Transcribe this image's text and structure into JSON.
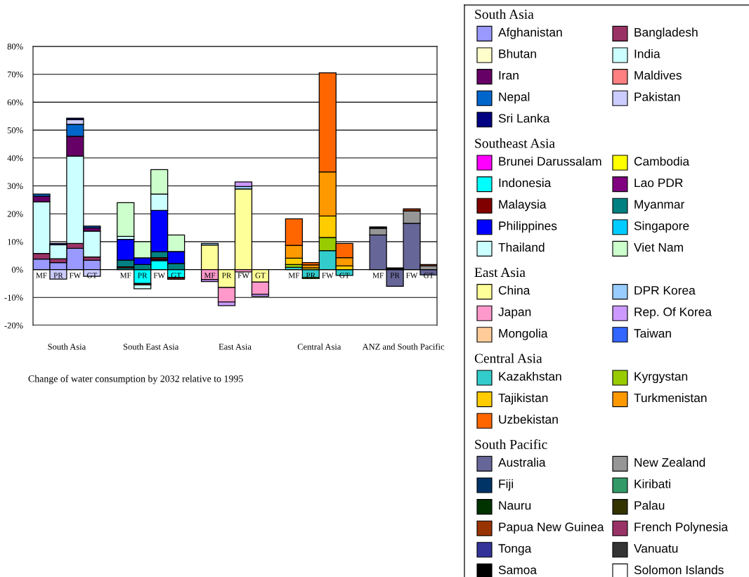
{
  "chart_data": {
    "type": "bar",
    "stacked": true,
    "categories": [
      "MF",
      "PR",
      "FW",
      "GT",
      null,
      "MF",
      "PR",
      "FW",
      "GT",
      null,
      "MF",
      "PR",
      "FW",
      "GT",
      null,
      "MF",
      "PR",
      "FW",
      "GT",
      null,
      "MF",
      "PR",
      "FW",
      "GT"
    ],
    "ylim": [
      -20,
      80
    ],
    "yticks": [
      {
        "value": -20,
        "label": "-20%"
      },
      {
        "value": -10,
        "label": "-10%"
      },
      {
        "value": 0,
        "label": "0%"
      },
      {
        "value": 10,
        "label": "10%"
      },
      {
        "value": 20,
        "label": "20%"
      },
      {
        "value": 30,
        "label": "30%"
      },
      {
        "value": 40,
        "label": "40%"
      },
      {
        "value": 50,
        "label": "50%"
      },
      {
        "value": 60,
        "label": "60%"
      },
      {
        "value": 70,
        "label": "70%"
      },
      {
        "value": 80,
        "label": "80%"
      }
    ],
    "grid": "y",
    "legend": "right",
    "annotations": [
      "South Asia",
      "South East Asia",
      "East Asia",
      "Central Asia",
      "ANZ and South Pacific",
      "Change of water consumption by 2032 relative to 1995",
      "South Asia",
      "Southeast Asia",
      "East Asia",
      "Central Asia",
      "South Pacific"
    ],
    "series": [
      {
        "name": "Afghanistan",
        "color": "#9999ff",
        "values": [
          3.8,
          2.5,
          7.6,
          3.3,
          null,
          null,
          null,
          null,
          null,
          null,
          null,
          null,
          null,
          null,
          null,
          null,
          null,
          null,
          null,
          null,
          null,
          null,
          null,
          null
        ]
      },
      {
        "name": "Bangladesh",
        "color": "#993366",
        "values": [
          2.0,
          1.4,
          1.8,
          1.2,
          null,
          null,
          null,
          null,
          null,
          null,
          null,
          null,
          null,
          null,
          null,
          null,
          null,
          null,
          null,
          null,
          null,
          null,
          null,
          null
        ]
      },
      {
        "name": "Bhutan",
        "color": "#ffffcc",
        "values": [
          0,
          0,
          0,
          0,
          null,
          null,
          null,
          null,
          null,
          null,
          null,
          null,
          null,
          null,
          null,
          null,
          null,
          null,
          null,
          null,
          null,
          null,
          null,
          null
        ]
      },
      {
        "name": "India",
        "color": "#ccffff",
        "values": [
          18.5,
          5.0,
          31.3,
          9.3,
          null,
          null,
          null,
          null,
          null,
          null,
          null,
          null,
          null,
          null,
          null,
          null,
          null,
          null,
          null,
          null,
          null,
          null,
          null,
          null
        ]
      },
      {
        "name": "Iran",
        "color": "#660066",
        "values": [
          2.0,
          0,
          7.1,
          1.2,
          null,
          null,
          null,
          null,
          null,
          null,
          null,
          null,
          null,
          null,
          null,
          null,
          null,
          null,
          null,
          null,
          null,
          null,
          null,
          null
        ]
      },
      {
        "name": "Maldives",
        "color": "#ff8080",
        "values": [
          0,
          0,
          0,
          0,
          null,
          null,
          null,
          null,
          null,
          null,
          null,
          null,
          null,
          null,
          null,
          null,
          null,
          null,
          null,
          null,
          null,
          null,
          null,
          null
        ]
      },
      {
        "name": "Nepal",
        "color": "#0066cc",
        "values": [
          0.8,
          0,
          4.3,
          0.6,
          null,
          null,
          null,
          null,
          null,
          null,
          null,
          null,
          null,
          null,
          null,
          null,
          null,
          null,
          null,
          null,
          null,
          null,
          null,
          null
        ]
      },
      {
        "name": "Pakistan",
        "color": "#ccccff",
        "values": [
          0,
          -3.4,
          1.7,
          -2.4,
          null,
          null,
          null,
          null,
          null,
          null,
          null,
          null,
          null,
          null,
          null,
          null,
          null,
          null,
          null,
          null,
          null,
          null,
          null,
          null
        ]
      },
      {
        "name": "Sri Lanka",
        "color": "#000080",
        "values": [
          0,
          0.5,
          0.5,
          0,
          null,
          null,
          null,
          null,
          null,
          null,
          null,
          null,
          null,
          null,
          null,
          null,
          null,
          null,
          null,
          null,
          null,
          null,
          null,
          null
        ]
      },
      {
        "name": "Brunei Darussalam",
        "color": "#ff00ff",
        "values": [
          null,
          null,
          null,
          null,
          null,
          0,
          0,
          0,
          0,
          null,
          null,
          null,
          null,
          null,
          null,
          null,
          null,
          null,
          null,
          null,
          null,
          null,
          null,
          null
        ]
      },
      {
        "name": "Cambodia",
        "color": "#ffff00",
        "values": [
          null,
          null,
          null,
          null,
          null,
          0,
          0,
          0,
          0,
          null,
          null,
          null,
          null,
          null,
          null,
          null,
          null,
          null,
          null,
          null,
          null,
          null,
          null,
          null
        ]
      },
      {
        "name": "Indonesia",
        "color": "#00ffff",
        "values": [
          null,
          null,
          null,
          null,
          null,
          0.5,
          -5.0,
          3.2,
          -2.8,
          null,
          null,
          null,
          null,
          null,
          null,
          null,
          null,
          null,
          null,
          null,
          null,
          null,
          null,
          null
        ]
      },
      {
        "name": "Lao PDR",
        "color": "#800080",
        "values": [
          null,
          null,
          null,
          null,
          null,
          0,
          0,
          0.4,
          0,
          null,
          null,
          null,
          null,
          null,
          null,
          null,
          null,
          null,
          null,
          null,
          null,
          null,
          null,
          null
        ]
      },
      {
        "name": "Malaysia",
        "color": "#800000",
        "values": [
          null,
          null,
          null,
          null,
          null,
          0.5,
          -0.5,
          0.7,
          -0.7,
          null,
          null,
          null,
          null,
          null,
          null,
          null,
          null,
          null,
          null,
          null,
          null,
          null,
          null,
          null
        ]
      },
      {
        "name": "Myanmar",
        "color": "#008080",
        "values": [
          null,
          null,
          null,
          null,
          null,
          2.4,
          1.8,
          2.1,
          2.2,
          null,
          null,
          null,
          null,
          null,
          null,
          null,
          null,
          null,
          null,
          null,
          null,
          null,
          null,
          null
        ]
      },
      {
        "name": "Philippines",
        "color": "#0000ff",
        "values": [
          null,
          null,
          null,
          null,
          null,
          7.4,
          2.4,
          14.8,
          4.3,
          null,
          null,
          null,
          null,
          null,
          null,
          null,
          null,
          null,
          null,
          null,
          null,
          null,
          null,
          null
        ]
      },
      {
        "name": "Singapore",
        "color": "#00ccff",
        "values": [
          null,
          null,
          null,
          null,
          null,
          0,
          0,
          0,
          0,
          null,
          null,
          null,
          null,
          null,
          null,
          null,
          null,
          null,
          null,
          null,
          null,
          null,
          null,
          null
        ]
      },
      {
        "name": "Thailand",
        "color": "#ccffff",
        "values": [
          null,
          null,
          null,
          null,
          null,
          1.1,
          -1.4,
          5.9,
          0,
          null,
          null,
          null,
          null,
          null,
          null,
          null,
          null,
          null,
          null,
          null,
          null,
          null,
          null,
          null
        ]
      },
      {
        "name": "Viet Nam",
        "color": "#ccffcc",
        "values": [
          null,
          null,
          null,
          null,
          null,
          12.1,
          5.8,
          8.7,
          5.9,
          null,
          null,
          null,
          null,
          null,
          null,
          null,
          null,
          null,
          null,
          null,
          null,
          null,
          null,
          null
        ]
      },
      {
        "name": "China",
        "color": "#ffff99",
        "values": [
          null,
          null,
          null,
          null,
          null,
          null,
          null,
          null,
          null,
          null,
          8.8,
          -6.4,
          28.9,
          -4.5,
          null,
          null,
          null,
          null,
          null,
          null,
          null,
          null,
          null,
          null
        ]
      },
      {
        "name": "DPR Korea",
        "color": "#99ccff",
        "values": [
          null,
          null,
          null,
          null,
          null,
          null,
          null,
          null,
          null,
          null,
          0.6,
          0,
          0.9,
          0,
          null,
          null,
          null,
          null,
          null,
          null,
          null,
          null,
          null,
          null
        ]
      },
      {
        "name": "Japan",
        "color": "#ff99cc",
        "values": [
          null,
          null,
          null,
          null,
          null,
          null,
          null,
          null,
          null,
          null,
          -3.6,
          -5.2,
          -0.8,
          -4.3,
          null,
          null,
          null,
          null,
          null,
          null,
          null,
          null,
          null,
          null
        ]
      },
      {
        "name": "Rep. Of Korea",
        "color": "#cc99ff",
        "values": [
          null,
          null,
          null,
          null,
          null,
          null,
          null,
          null,
          null,
          null,
          -0.7,
          -1.3,
          1.6,
          -0.8,
          null,
          null,
          null,
          null,
          null,
          null,
          null,
          null,
          null,
          null
        ]
      },
      {
        "name": "Mongolia",
        "color": "#ffcc99",
        "values": [
          null,
          null,
          null,
          null,
          null,
          null,
          null,
          null,
          null,
          null,
          0,
          0,
          0,
          0,
          null,
          null,
          null,
          null,
          null,
          null,
          null,
          null,
          null,
          null
        ]
      },
      {
        "name": "Taiwan",
        "color": "#3366ff",
        "values": [
          null,
          null,
          null,
          null,
          null,
          null,
          null,
          null,
          null,
          null,
          0,
          0,
          0,
          0,
          null,
          null,
          null,
          null,
          null,
          null,
          null,
          null,
          null,
          null
        ]
      },
      {
        "name": "Kazakhstan",
        "color": "#33cccc",
        "values": [
          null,
          null,
          null,
          null,
          null,
          null,
          null,
          null,
          null,
          null,
          null,
          null,
          null,
          null,
          null,
          0.8,
          -2.8,
          6.8,
          -2.1,
          null,
          null,
          null,
          null,
          null
        ]
      },
      {
        "name": "Kyrgystan",
        "color": "#99cc00",
        "values": [
          null,
          null,
          null,
          null,
          null,
          null,
          null,
          null,
          null,
          null,
          null,
          null,
          null,
          null,
          null,
          1.0,
          -0.4,
          4.7,
          0,
          null,
          null,
          null,
          null,
          null
        ]
      },
      {
        "name": "Tajikistan",
        "color": "#ffcc00",
        "values": [
          null,
          null,
          null,
          null,
          null,
          null,
          null,
          null,
          null,
          null,
          null,
          null,
          null,
          null,
          null,
          2.3,
          0.6,
          7.7,
          1.3,
          null,
          null,
          null,
          null,
          null
        ]
      },
      {
        "name": "Turkmenistan",
        "color": "#ff9900",
        "values": [
          null,
          null,
          null,
          null,
          null,
          null,
          null,
          null,
          null,
          null,
          null,
          null,
          null,
          null,
          null,
          4.6,
          1.1,
          15.8,
          3.0,
          null,
          null,
          null,
          null,
          null
        ]
      },
      {
        "name": "Uzbekistan",
        "color": "#ff6600",
        "values": [
          null,
          null,
          null,
          null,
          null,
          null,
          null,
          null,
          null,
          null,
          null,
          null,
          null,
          null,
          null,
          9.5,
          0.8,
          35.5,
          5.1,
          null,
          null,
          null,
          null,
          null
        ]
      },
      {
        "name": "Australia",
        "color": "#666699",
        "values": [
          null,
          null,
          null,
          null,
          null,
          null,
          null,
          null,
          null,
          null,
          null,
          null,
          null,
          null,
          null,
          null,
          null,
          null,
          null,
          null,
          12.4,
          -6.0,
          16.6,
          -1.9
        ]
      },
      {
        "name": "New Zealand",
        "color": "#969696",
        "values": [
          null,
          null,
          null,
          null,
          null,
          null,
          null,
          null,
          null,
          null,
          null,
          null,
          null,
          null,
          null,
          null,
          null,
          null,
          null,
          null,
          2.4,
          0,
          4.4,
          1.3
        ]
      },
      {
        "name": "Fiji",
        "color": "#003366",
        "values": [
          null,
          null,
          null,
          null,
          null,
          null,
          null,
          null,
          null,
          null,
          null,
          null,
          null,
          null,
          null,
          null,
          null,
          null,
          null,
          null,
          0,
          0,
          0,
          0
        ]
      },
      {
        "name": "Kiribati",
        "color": "#339966",
        "values": [
          null,
          null,
          null,
          null,
          null,
          null,
          null,
          null,
          null,
          null,
          null,
          null,
          null,
          null,
          null,
          null,
          null,
          null,
          null,
          null,
          0,
          0,
          0,
          0
        ]
      },
      {
        "name": "Nauru",
        "color": "#003300",
        "values": [
          null,
          null,
          null,
          null,
          null,
          null,
          null,
          null,
          null,
          null,
          null,
          null,
          null,
          null,
          null,
          null,
          null,
          null,
          null,
          null,
          0,
          0,
          0,
          0
        ]
      },
      {
        "name": "Palau",
        "color": "#333300",
        "values": [
          null,
          null,
          null,
          null,
          null,
          null,
          null,
          null,
          null,
          null,
          null,
          null,
          null,
          null,
          null,
          null,
          null,
          null,
          null,
          null,
          0,
          0,
          0,
          0
        ]
      },
      {
        "name": "Papua New Guinea",
        "color": "#993300",
        "values": [
          null,
          null,
          null,
          null,
          null,
          null,
          null,
          null,
          null,
          null,
          null,
          null,
          null,
          null,
          null,
          null,
          null,
          null,
          null,
          null,
          0,
          0,
          0.8,
          0.5
        ]
      },
      {
        "name": "French Polynesia",
        "color": "#993366",
        "values": [
          null,
          null,
          null,
          null,
          null,
          null,
          null,
          null,
          null,
          null,
          null,
          null,
          null,
          null,
          null,
          null,
          null,
          null,
          null,
          null,
          0,
          0,
          0,
          0
        ]
      },
      {
        "name": "Tonga",
        "color": "#333399",
        "values": [
          null,
          null,
          null,
          null,
          null,
          null,
          null,
          null,
          null,
          null,
          null,
          null,
          null,
          null,
          null,
          null,
          null,
          null,
          null,
          null,
          0,
          0,
          0,
          0
        ]
      },
      {
        "name": "Vanuatu",
        "color": "#333333",
        "values": [
          null,
          null,
          null,
          null,
          null,
          null,
          null,
          null,
          null,
          null,
          null,
          null,
          null,
          null,
          null,
          null,
          null,
          null,
          null,
          null,
          0,
          0,
          0,
          0
        ]
      },
      {
        "name": "Samoa",
        "color": "#000000",
        "values": [
          null,
          null,
          null,
          null,
          null,
          null,
          null,
          null,
          null,
          null,
          null,
          null,
          null,
          null,
          null,
          null,
          null,
          null,
          null,
          null,
          0.5,
          0.6,
          0,
          0
        ]
      },
      {
        "name": "Solomon Islands",
        "color": "#ffffff",
        "values": [
          null,
          null,
          null,
          null,
          null,
          null,
          null,
          null,
          null,
          null,
          null,
          null,
          null,
          null,
          null,
          null,
          null,
          null,
          null,
          null,
          0,
          0,
          0,
          0
        ]
      }
    ]
  }
}
